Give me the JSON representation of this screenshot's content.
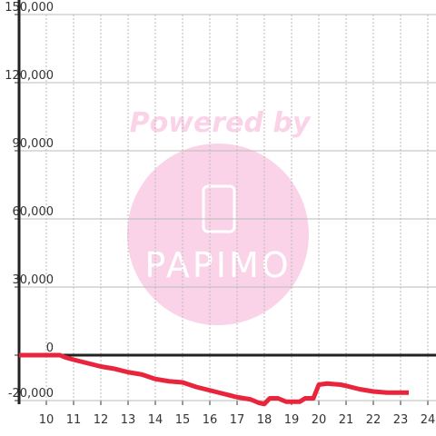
{
  "chart_data": {
    "type": "line",
    "watermark": {
      "top": "Powered by",
      "logo": "PAPIMO"
    },
    "x": [
      9,
      10.3,
      10.5,
      10.7,
      11,
      11.5,
      12,
      12.5,
      13,
      13.5,
      14,
      14.5,
      15,
      15.5,
      16,
      16.5,
      17,
      17.5,
      17.8,
      18,
      18.2,
      18.5,
      18.8,
      19.3,
      19.5,
      19.8,
      20,
      20.3,
      20.8,
      21,
      21.5,
      22,
      22.5,
      23.3
    ],
    "series": [
      {
        "name": "",
        "color": "#e8253c",
        "values": [
          0,
          0,
          0,
          -1000,
          -2000,
          -3500,
          -5000,
          -6000,
          -7500,
          -8500,
          -10500,
          -11500,
          -12000,
          -14000,
          -15500,
          -17000,
          -18500,
          -19500,
          -21000,
          -21500,
          -19000,
          -19000,
          -20500,
          -20500,
          -19000,
          -19000,
          -13000,
          -12500,
          -13000,
          -13500,
          -15000,
          -16000,
          -16500,
          -16500
        ]
      }
    ],
    "xlim": [
      9,
      24.3
    ],
    "xticks": [
      10,
      11,
      12,
      13,
      14,
      15,
      16,
      17,
      18,
      19,
      20,
      21,
      22,
      23,
      24
    ],
    "ylim": [
      -20000,
      150000
    ],
    "yticks": [
      {
        "value": -20000,
        "label": "-20,000"
      },
      0,
      {
        "value": 30000,
        "label": "30,000"
      },
      {
        "value": 60000,
        "label": "60,000"
      },
      {
        "value": 90000,
        "label": "90,000"
      },
      {
        "value": 120000,
        "label": "120,000"
      },
      {
        "value": 150000,
        "label": "150,000"
      }
    ],
    "grid": true
  }
}
